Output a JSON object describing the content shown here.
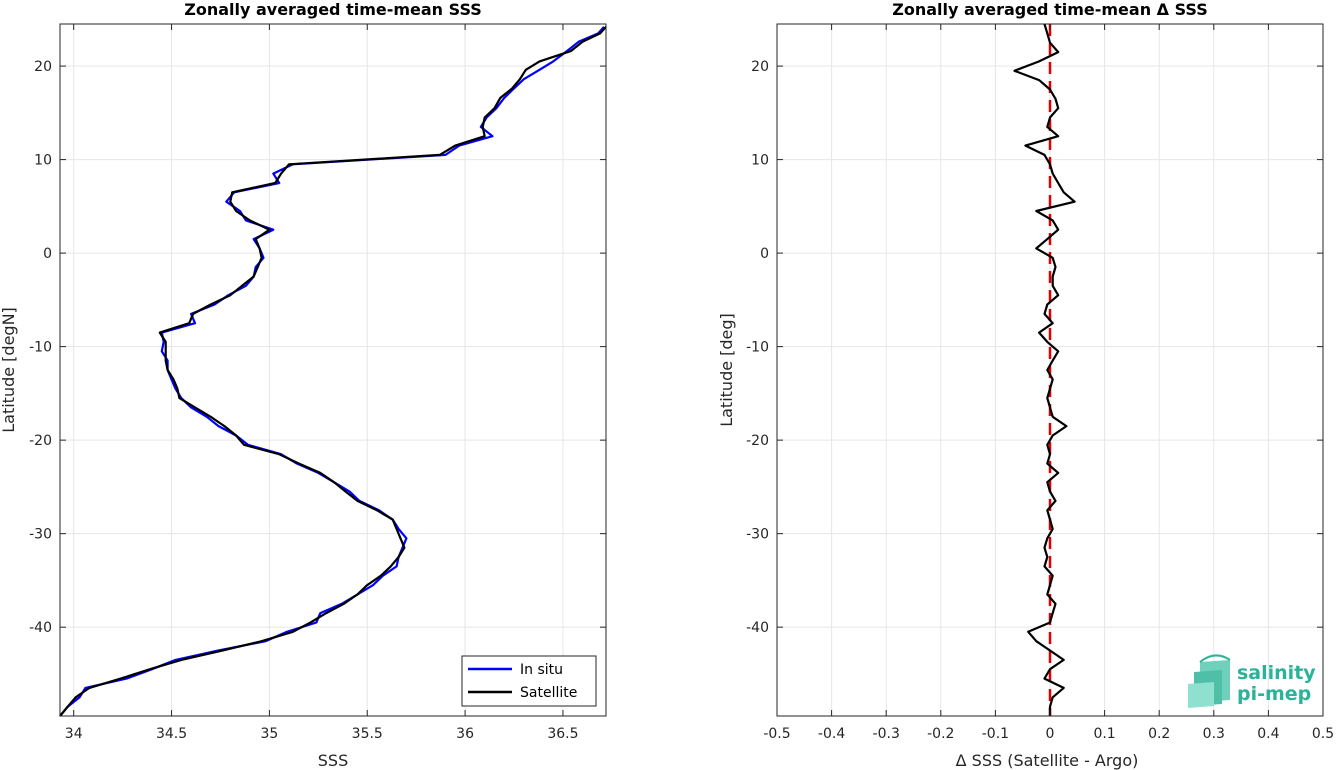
{
  "chart_data": [
    {
      "type": "line",
      "title": "Zonally averaged time-mean SSS",
      "xlabel": "SSS",
      "ylabel": "Latitude [degN]",
      "xlim": [
        33.93,
        36.72
      ],
      "ylim": [
        -49.5,
        24.5
      ],
      "xticks": [
        34,
        34.5,
        35,
        35.5,
        36,
        36.5
      ],
      "xtick_labels": [
        "34",
        "34.5",
        "35",
        "35.5",
        "36",
        "36.5"
      ],
      "yticks": [
        -40,
        -30,
        -20,
        -10,
        0,
        10,
        20
      ],
      "ytick_labels": [
        "-40",
        "-30",
        "-20",
        "-10",
        "0",
        "10",
        "20"
      ],
      "grid": true,
      "legend_position": "bottom-right",
      "series": [
        {
          "name": "In situ",
          "color": "#0000ff",
          "points": [
            [
              24.2,
              36.71
            ],
            [
              23.5,
              36.68
            ],
            [
              22.6,
              36.58
            ],
            [
              21.6,
              36.52
            ],
            [
              20.5,
              36.45
            ],
            [
              19.6,
              36.38
            ],
            [
              18.6,
              36.3
            ],
            [
              17.6,
              36.25
            ],
            [
              16.6,
              36.2
            ],
            [
              15.5,
              36.16
            ],
            [
              14.5,
              36.11
            ],
            [
              13.5,
              36.08
            ],
            [
              12.5,
              36.14
            ],
            [
              11.5,
              35.97
            ],
            [
              10.5,
              35.9
            ],
            [
              9.5,
              35.12
            ],
            [
              8.5,
              35.02
            ],
            [
              7.5,
              35.05
            ],
            [
              6.5,
              34.82
            ],
            [
              5.5,
              34.78
            ],
            [
              4.5,
              34.85
            ],
            [
              3.5,
              34.88
            ],
            [
              2.5,
              35.02
            ],
            [
              1.5,
              34.92
            ],
            [
              0.5,
              34.95
            ],
            [
              -0.5,
              34.97
            ],
            [
              -1.5,
              34.93
            ],
            [
              -2.5,
              34.92
            ],
            [
              -3.5,
              34.88
            ],
            [
              -4.5,
              34.79
            ],
            [
              -5.5,
              34.72
            ],
            [
              -6.5,
              34.6
            ],
            [
              -7.5,
              34.62
            ],
            [
              -8.5,
              34.45
            ],
            [
              -9.5,
              34.46
            ],
            [
              -10.5,
              34.45
            ],
            [
              -11.5,
              34.48
            ],
            [
              -12.5,
              34.48
            ],
            [
              -13.5,
              34.5
            ],
            [
              -14.5,
              34.52
            ],
            [
              -15.5,
              34.55
            ],
            [
              -16.5,
              34.6
            ],
            [
              -17.5,
              34.68
            ],
            [
              -18.5,
              34.74
            ],
            [
              -19.5,
              34.83
            ],
            [
              -20.5,
              34.89
            ],
            [
              -21.5,
              35.06
            ],
            [
              -22.5,
              35.14
            ],
            [
              -23.5,
              35.25
            ],
            [
              -24.5,
              35.33
            ],
            [
              -25.5,
              35.41
            ],
            [
              -26.5,
              35.46
            ],
            [
              -27.5,
              35.56
            ],
            [
              -28.5,
              35.63
            ],
            [
              -29.5,
              35.66
            ],
            [
              -30.5,
              35.7
            ],
            [
              -31.5,
              35.68
            ],
            [
              -32.5,
              35.66
            ],
            [
              -33.5,
              35.65
            ],
            [
              -34.5,
              35.58
            ],
            [
              -35.5,
              35.53
            ],
            [
              -36.5,
              35.45
            ],
            [
              -37.5,
              35.37
            ],
            [
              -38.5,
              35.26
            ],
            [
              -39.5,
              35.24
            ],
            [
              -40.5,
              35.09
            ],
            [
              -41.5,
              34.98
            ],
            [
              -42.5,
              34.74
            ],
            [
              -43.5,
              34.52
            ],
            [
              -44.5,
              34.4
            ],
            [
              -45.5,
              34.27
            ],
            [
              -46.5,
              34.06
            ],
            [
              -47.5,
              34.03
            ],
            [
              -48.5,
              33.97
            ],
            [
              -49.5,
              33.93
            ]
          ]
        },
        {
          "name": "Satellite",
          "color": "#000000",
          "points": [
            [
              24.2,
              36.72
            ],
            [
              23.5,
              36.69
            ],
            [
              22.6,
              36.6
            ],
            [
              21.6,
              36.54
            ],
            [
              20.5,
              36.38
            ],
            [
              19.6,
              36.31
            ],
            [
              18.6,
              36.28
            ],
            [
              17.6,
              36.24
            ],
            [
              16.6,
              36.18
            ],
            [
              15.5,
              36.15
            ],
            [
              14.5,
              36.1
            ],
            [
              13.5,
              36.09
            ],
            [
              12.5,
              36.1
            ],
            [
              11.5,
              35.95
            ],
            [
              10.5,
              35.87
            ],
            [
              9.5,
              35.1
            ],
            [
              8.5,
              35.06
            ],
            [
              7.5,
              35.03
            ],
            [
              6.5,
              34.81
            ],
            [
              5.5,
              34.8
            ],
            [
              4.5,
              34.83
            ],
            [
              3.5,
              34.9
            ],
            [
              2.5,
              35.0
            ],
            [
              1.5,
              34.93
            ],
            [
              0.5,
              34.95
            ],
            [
              -0.5,
              34.96
            ],
            [
              -1.5,
              34.94
            ],
            [
              -2.5,
              34.92
            ],
            [
              -3.5,
              34.86
            ],
            [
              -4.5,
              34.8
            ],
            [
              -5.5,
              34.7
            ],
            [
              -6.5,
              34.61
            ],
            [
              -7.5,
              34.59
            ],
            [
              -8.5,
              34.44
            ],
            [
              -9.5,
              34.47
            ],
            [
              -10.5,
              34.47
            ],
            [
              -11.5,
              34.47
            ],
            [
              -12.5,
              34.48
            ],
            [
              -13.5,
              34.51
            ],
            [
              -14.5,
              34.53
            ],
            [
              -15.5,
              34.54
            ],
            [
              -16.5,
              34.62
            ],
            [
              -17.5,
              34.7
            ],
            [
              -18.5,
              34.77
            ],
            [
              -19.5,
              34.83
            ],
            [
              -20.5,
              34.87
            ],
            [
              -21.5,
              35.05
            ],
            [
              -22.5,
              35.15
            ],
            [
              -23.5,
              35.26
            ],
            [
              -24.5,
              35.33
            ],
            [
              -25.5,
              35.39
            ],
            [
              -26.5,
              35.45
            ],
            [
              -27.5,
              35.55
            ],
            [
              -28.5,
              35.63
            ],
            [
              -29.5,
              35.65
            ],
            [
              -30.5,
              35.67
            ],
            [
              -31.5,
              35.69
            ],
            [
              -32.5,
              35.66
            ],
            [
              -33.5,
              35.62
            ],
            [
              -34.5,
              35.57
            ],
            [
              -35.5,
              35.5
            ],
            [
              -36.5,
              35.45
            ],
            [
              -37.5,
              35.38
            ],
            [
              -38.5,
              35.29
            ],
            [
              -39.5,
              35.21
            ],
            [
              -40.5,
              35.12
            ],
            [
              -41.5,
              34.96
            ],
            [
              -42.5,
              34.76
            ],
            [
              -43.5,
              34.55
            ],
            [
              -44.5,
              34.39
            ],
            [
              -45.5,
              34.24
            ],
            [
              -46.5,
              34.08
            ],
            [
              -47.5,
              34.01
            ],
            [
              -48.5,
              33.97
            ],
            [
              -49.5,
              33.93
            ]
          ]
        }
      ]
    },
    {
      "type": "line",
      "title": "Zonally averaged time-mean Δ SSS",
      "xlabel": "Δ SSS (Satellite - Argo)",
      "ylabel": "Latitude [deg]",
      "xlim": [
        -0.5,
        0.5
      ],
      "ylim": [
        -49.5,
        24.5
      ],
      "xticks": [
        -0.5,
        -0.4,
        -0.3,
        -0.2,
        -0.1,
        0,
        0.1,
        0.2,
        0.3,
        0.4,
        0.5
      ],
      "xtick_labels": [
        "-0.5",
        "-0.4",
        "-0.3",
        "-0.2",
        "-0.1",
        "0",
        "0.1",
        "0.2",
        "0.3",
        "0.4",
        "0.5"
      ],
      "yticks": [
        -40,
        -30,
        -20,
        -10,
        0,
        10,
        20
      ],
      "ytick_labels": [
        "-40",
        "-30",
        "-20",
        "-10",
        "0",
        "10",
        "20"
      ],
      "grid": true,
      "reference_line": {
        "x": 0,
        "color": "#e00000",
        "style": "dashed"
      },
      "series": [
        {
          "color": "#000000",
          "points": [
            [
              24.5,
              -0.01
            ],
            [
              23.5,
              -0.005
            ],
            [
              22.5,
              0.0
            ],
            [
              21.5,
              0.015
            ],
            [
              20.5,
              -0.02
            ],
            [
              19.5,
              -0.065
            ],
            [
              18.5,
              -0.02
            ],
            [
              17.5,
              0.0
            ],
            [
              16.5,
              0.01
            ],
            [
              15.5,
              0.015
            ],
            [
              14.5,
              0.0
            ],
            [
              13.5,
              -0.005
            ],
            [
              12.5,
              0.015
            ],
            [
              11.5,
              -0.045
            ],
            [
              10.5,
              -0.01
            ],
            [
              9.5,
              0.0
            ],
            [
              8.5,
              0.005
            ],
            [
              7.5,
              0.015
            ],
            [
              6.5,
              0.025
            ],
            [
              5.5,
              0.045
            ],
            [
              4.5,
              -0.025
            ],
            [
              3.5,
              0.005
            ],
            [
              2.5,
              0.015
            ],
            [
              1.5,
              -0.005
            ],
            [
              0.5,
              -0.025
            ],
            [
              -0.5,
              0.005
            ],
            [
              -1.5,
              0.01
            ],
            [
              -2.5,
              0.005
            ],
            [
              -3.5,
              0.005
            ],
            [
              -4.5,
              0.015
            ],
            [
              -5.5,
              -0.005
            ],
            [
              -6.5,
              -0.01
            ],
            [
              -7.5,
              0.005
            ],
            [
              -8.5,
              -0.02
            ],
            [
              -9.5,
              -0.005
            ],
            [
              -10.5,
              0.015
            ],
            [
              -11.5,
              0.005
            ],
            [
              -12.5,
              -0.005
            ],
            [
              -13.5,
              0.005
            ],
            [
              -14.5,
              0.0
            ],
            [
              -15.5,
              -0.005
            ],
            [
              -16.5,
              0.0
            ],
            [
              -17.5,
              0.005
            ],
            [
              -18.5,
              0.03
            ],
            [
              -19.5,
              0.005
            ],
            [
              -20.5,
              -0.005
            ],
            [
              -21.5,
              0.0
            ],
            [
              -22.5,
              -0.005
            ],
            [
              -23.5,
              0.015
            ],
            [
              -24.5,
              -0.005
            ],
            [
              -25.5,
              0.0
            ],
            [
              -26.5,
              0.01
            ],
            [
              -27.5,
              -0.005
            ],
            [
              -28.5,
              0.0
            ],
            [
              -29.5,
              0.005
            ],
            [
              -30.5,
              -0.005
            ],
            [
              -31.5,
              -0.01
            ],
            [
              -32.5,
              -0.005
            ],
            [
              -33.5,
              -0.01
            ],
            [
              -34.5,
              0.005
            ],
            [
              -35.5,
              0.0
            ],
            [
              -36.5,
              -0.005
            ],
            [
              -37.5,
              0.01
            ],
            [
              -38.5,
              0.005
            ],
            [
              -39.5,
              0.0
            ],
            [
              -40.5,
              -0.04
            ],
            [
              -41.5,
              -0.025
            ],
            [
              -42.5,
              0.0
            ],
            [
              -43.5,
              0.025
            ],
            [
              -44.5,
              0.0
            ],
            [
              -45.5,
              -0.01
            ],
            [
              -46.5,
              0.025
            ],
            [
              -47.5,
              0.005
            ],
            [
              -48.5,
              0.0
            ],
            [
              -49.5,
              0.0
            ]
          ]
        }
      ]
    }
  ],
  "logo": {
    "line1": "salinity",
    "line2": "pi-mep",
    "color": "#2bb39a"
  }
}
